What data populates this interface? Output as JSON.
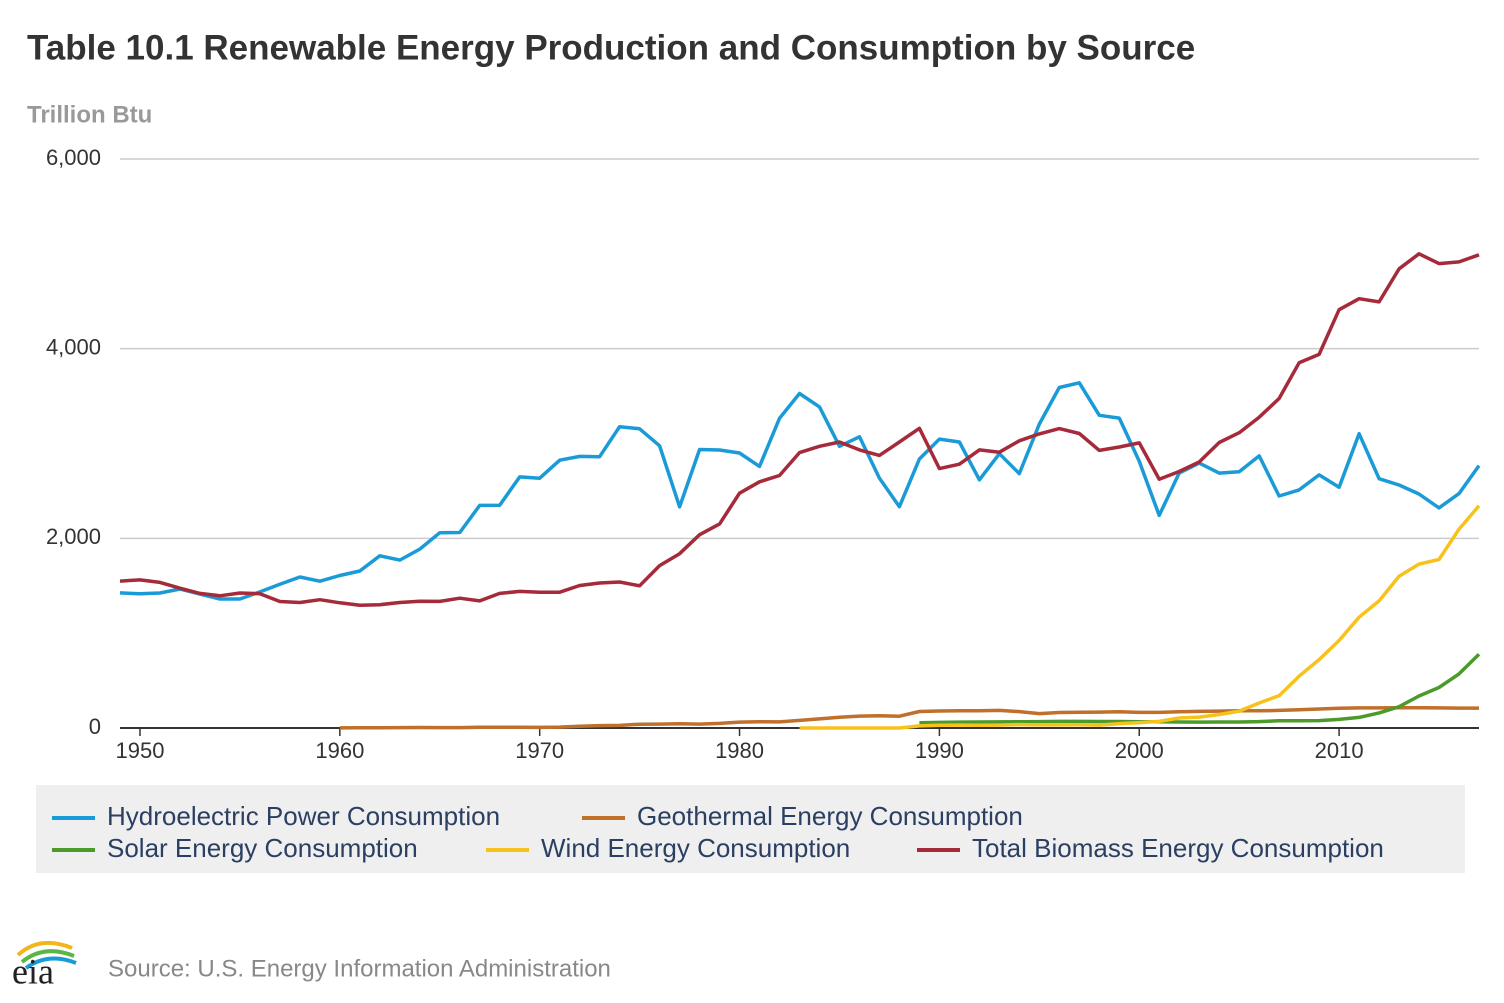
{
  "chart_data": {
    "type": "line",
    "title": "Table 10.1 Renewable Energy Production and Consumption by Source",
    "y_axis_label": "Trillion Btu",
    "source": "Source: U.S. Energy Information Administration",
    "logo_text": "eia",
    "x": [
      1949,
      1950,
      1951,
      1952,
      1953,
      1954,
      1955,
      1956,
      1957,
      1958,
      1959,
      1960,
      1961,
      1962,
      1963,
      1964,
      1965,
      1966,
      1967,
      1968,
      1969,
      1970,
      1971,
      1972,
      1973,
      1974,
      1975,
      1976,
      1977,
      1978,
      1979,
      1980,
      1981,
      1982,
      1983,
      1984,
      1985,
      1986,
      1987,
      1988,
      1989,
      1990,
      1991,
      1992,
      1993,
      1994,
      1995,
      1996,
      1997,
      1998,
      1999,
      2000,
      2001,
      2002,
      2003,
      2004,
      2005,
      2006,
      2007,
      2008,
      2009,
      2010,
      2011,
      2012,
      2013,
      2014,
      2015,
      2016,
      2017
    ],
    "xlim": [
      1949,
      2017
    ],
    "xticks": [
      1950,
      1960,
      1970,
      1980,
      1990,
      2000,
      2010
    ],
    "ylim": [
      0,
      6000
    ],
    "yticks": [
      0,
      {
        "value": 2000,
        "label": "2,000"
      },
      {
        "value": 4000,
        "label": "4,000"
      },
      {
        "value": 6000,
        "label": "6,000"
      }
    ],
    "grid": true,
    "legend_position": "bottom",
    "series": [
      {
        "name": "Hydroelectric Power Consumption",
        "color": "#1a9bd7",
        "values": [
          1425,
          1415,
          1424,
          1466,
          1413,
          1360,
          1360,
          1435,
          1516,
          1592,
          1548,
          1608,
          1656,
          1816,
          1771,
          1886,
          2059,
          2062,
          2347,
          2349,
          2648,
          2634,
          2824,
          2864,
          2861,
          3177,
          3155,
          2976,
          2333,
          2937,
          2931,
          2900,
          2758,
          3266,
          3527,
          3386,
          2970,
          3071,
          2635,
          2334,
          2837,
          3046,
          3016,
          2617,
          2892,
          2683,
          3205,
          3590,
          3640,
          3297,
          3268,
          2811,
          2242,
          2689,
          2793,
          2688,
          2703,
          2869,
          2446,
          2511,
          2669,
          2539,
          3103,
          2629,
          2562,
          2467,
          2321,
          2472,
          2767
        ]
      },
      {
        "name": "Geothermal Energy Consumption",
        "color": "#c0702a",
        "values": [
          null,
          null,
          null,
          null,
          null,
          null,
          null,
          null,
          null,
          null,
          null,
          1,
          2,
          2,
          4,
          5,
          4,
          4,
          7,
          8,
          7,
          6,
          10,
          19,
          25,
          27,
          40,
          41,
          45,
          41,
          48,
          62,
          66,
          64,
          80,
          96,
          114,
          125,
          129,
          124,
          174,
          179,
          181,
          181,
          186,
          173,
          152,
          163,
          167,
          168,
          171,
          164,
          164,
          171,
          175,
          178,
          181,
          181,
          186,
          192,
          200,
          208,
          212,
          212,
          214,
          214,
          212,
          210,
          210
        ]
      },
      {
        "name": "Solar Energy Consumption",
        "color": "#4c9a2a",
        "values": [
          null,
          null,
          null,
          null,
          null,
          null,
          null,
          null,
          null,
          null,
          null,
          null,
          null,
          null,
          null,
          null,
          null,
          null,
          null,
          null,
          null,
          null,
          null,
          null,
          null,
          null,
          null,
          null,
          null,
          null,
          null,
          null,
          null,
          null,
          null,
          null,
          null,
          null,
          null,
          null,
          55,
          59,
          62,
          63,
          64,
          66,
          68,
          70,
          70,
          69,
          69,
          66,
          65,
          63,
          62,
          63,
          63,
          68,
          76,
          76,
          78,
          91,
          112,
          159,
          225,
          337,
          427,
          570,
          777
        ]
      },
      {
        "name": "Wind Energy Consumption",
        "color": "#f7c21b",
        "values": [
          null,
          null,
          null,
          null,
          null,
          null,
          null,
          null,
          null,
          null,
          null,
          null,
          null,
          null,
          null,
          null,
          null,
          null,
          null,
          null,
          null,
          null,
          null,
          null,
          null,
          null,
          null,
          null,
          null,
          null,
          null,
          null,
          null,
          null,
          0,
          0,
          0,
          0,
          0,
          0,
          22,
          29,
          31,
          30,
          31,
          36,
          33,
          33,
          34,
          31,
          46,
          57,
          70,
          105,
          115,
          142,
          178,
          264,
          341,
          546,
          721,
          923,
          1168,
          1340,
          1601,
          1728,
          1777,
          2096,
          2343
        ]
      },
      {
        "name": "Total Biomass Energy Consumption",
        "color": "#a52a3a",
        "values": [
          1549,
          1562,
          1535,
          1474,
          1419,
          1394,
          1424,
          1416,
          1334,
          1323,
          1353,
          1320,
          1295,
          1300,
          1323,
          1337,
          1335,
          1369,
          1340,
          1419,
          1440,
          1431,
          1432,
          1503,
          1529,
          1540,
          1499,
          1713,
          1838,
          2038,
          2152,
          2476,
          2596,
          2663,
          2904,
          2971,
          3016,
          2932,
          2875,
          3016,
          3160,
          2735,
          2782,
          2932,
          2908,
          3028,
          3101,
          3157,
          3105,
          2927,
          2963,
          3006,
          2624,
          2705,
          2805,
          3011,
          3114,
          3277,
          3474,
          3851,
          3940,
          4411,
          4527,
          4493,
          4842,
          5000,
          4897,
          4915,
          4990
        ]
      }
    ]
  }
}
